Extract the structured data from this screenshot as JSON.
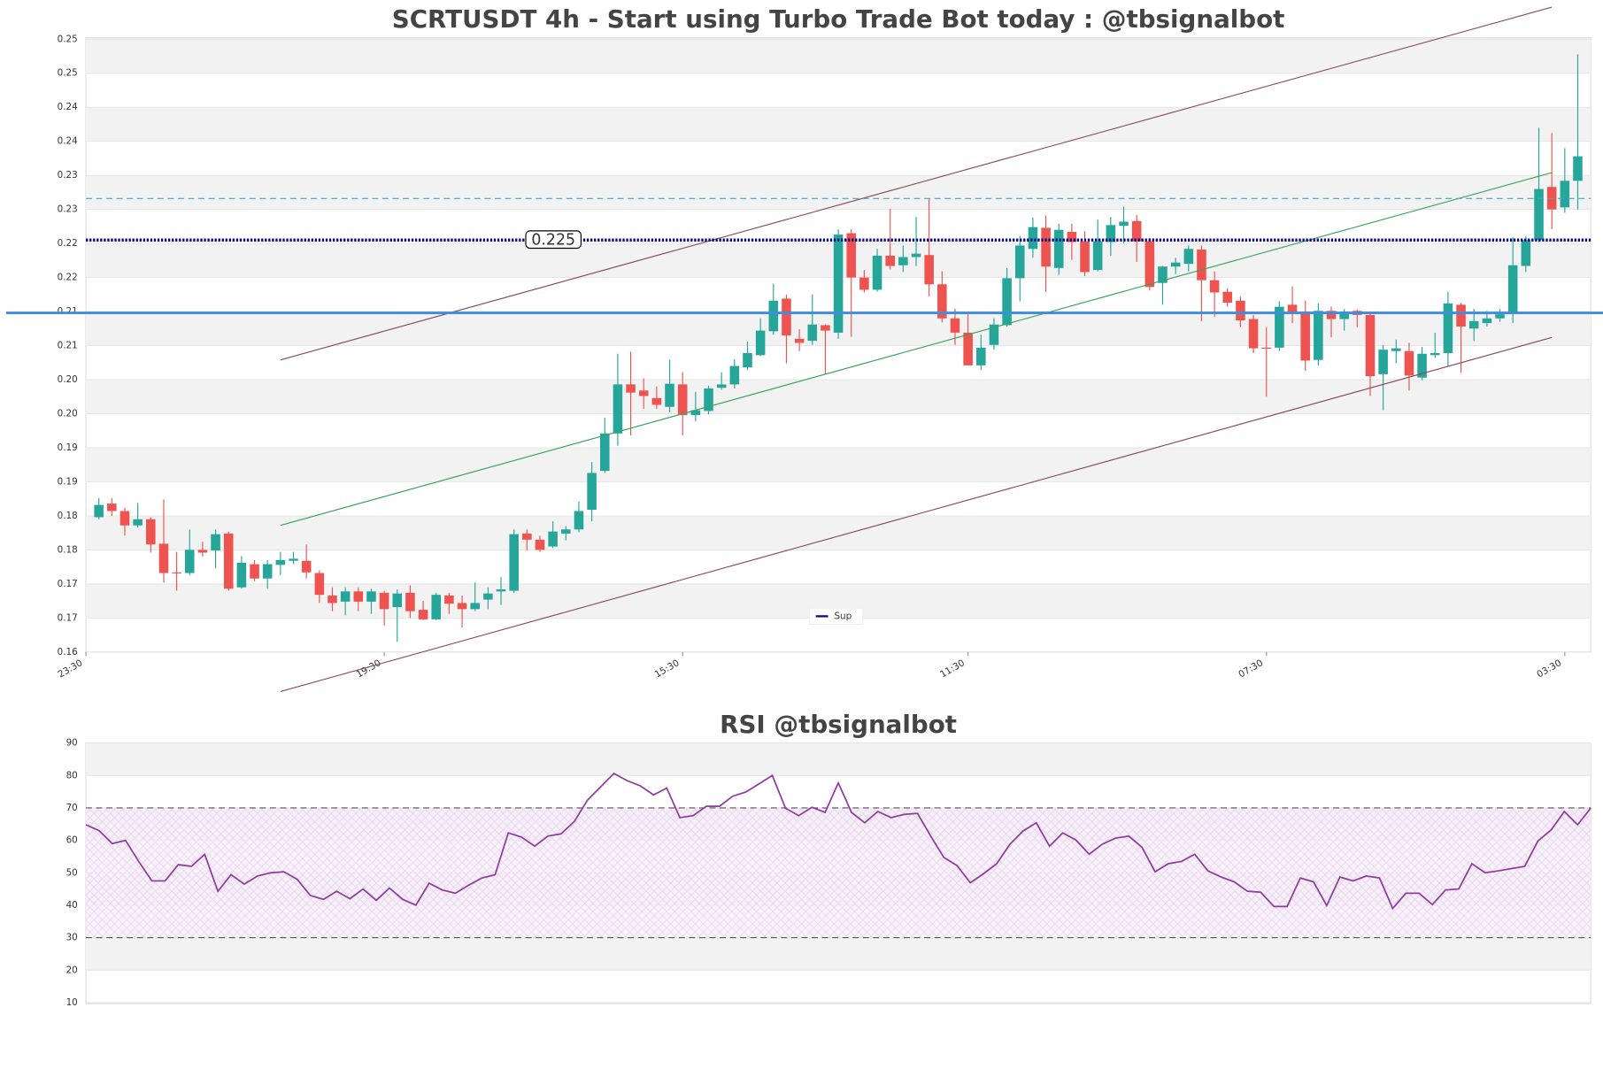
{
  "chart_data": [
    {
      "type": "candlestick",
      "title": "SCRTUSDT 4h - Start using Turbo Trade Bot today : @tbsignalbot",
      "open": [
        0.1843,
        0.1863,
        0.1852,
        0.1831,
        0.184,
        0.1804,
        0.1762,
        0.1761,
        0.1795,
        0.1794,
        0.1819,
        0.174,
        0.1774,
        0.1753,
        0.1773,
        0.1779,
        0.1779,
        0.1761,
        0.1728,
        0.1719,
        0.1734,
        0.1719,
        0.1732,
        0.1711,
        0.1732,
        0.1707,
        0.1693,
        0.1728,
        0.1717,
        0.1708,
        0.1722,
        0.1734,
        0.1735,
        0.1819,
        0.181,
        0.18,
        0.1819,
        0.1825,
        0.1854,
        0.1911,
        0.1966,
        0.2038,
        0.2029,
        0.2018,
        0.2005,
        0.2038,
        0.1993,
        0.1999,
        0.2033,
        0.2038,
        0.2063,
        0.2081,
        0.2116,
        0.2164,
        0.2105,
        0.2102,
        0.2125,
        0.2114,
        0.226,
        0.2195,
        0.2177,
        0.2227,
        0.2213,
        0.2225,
        0.2228,
        0.2185,
        0.2135,
        0.2114,
        0.2066,
        0.2096,
        0.2125,
        0.2194,
        0.2237,
        0.2268,
        0.2209,
        0.2262,
        0.2248,
        0.2206,
        0.2247,
        0.2271,
        0.2278,
        0.2248,
        0.2187,
        0.2211,
        0.2215,
        0.2236,
        0.2191,
        0.2174,
        0.2161,
        0.2134,
        0.2092,
        0.2092,
        0.2155,
        0.2145,
        0.2074,
        0.2146,
        0.2134,
        0.2146,
        0.214,
        0.2053,
        0.2087,
        0.2087,
        0.2048,
        0.2081,
        0.2084,
        0.2155,
        0.212,
        0.2128,
        0.2135,
        0.2143,
        0.2212,
        0.225,
        0.2328,
        0.2298,
        0.2337
      ],
      "high": [
        0.1871,
        0.1871,
        0.1857,
        0.1864,
        0.1843,
        0.1869,
        0.1792,
        0.1825,
        0.1807,
        0.1825,
        0.1822,
        0.1786,
        0.178,
        0.178,
        0.1792,
        0.1792,
        0.1803,
        0.1765,
        0.174,
        0.174,
        0.174,
        0.1738,
        0.1735,
        0.1737,
        0.1743,
        0.172,
        0.1732,
        0.1732,
        0.1728,
        0.1747,
        0.174,
        0.1755,
        0.1825,
        0.1825,
        0.1816,
        0.1837,
        0.183,
        0.1866,
        0.1924,
        0.1989,
        0.2083,
        0.2086,
        0.2047,
        0.2035,
        0.2074,
        0.2056,
        0.2027,
        0.2036,
        0.2056,
        0.2075,
        0.2101,
        0.2135,
        0.2186,
        0.217,
        0.2119,
        0.217,
        0.2126,
        0.2266,
        0.2266,
        0.2206,
        0.2237,
        0.2296,
        0.2242,
        0.2284,
        0.2311,
        0.2204,
        0.2149,
        0.2141,
        0.2111,
        0.2135,
        0.2209,
        0.2256,
        0.2283,
        0.2286,
        0.2274,
        0.2274,
        0.2263,
        0.228,
        0.2284,
        0.2299,
        0.2287,
        0.2253,
        0.2212,
        0.2224,
        0.2242,
        0.2242,
        0.2204,
        0.2179,
        0.2167,
        0.214,
        0.2122,
        0.216,
        0.2182,
        0.2161,
        0.2157,
        0.2152,
        0.2149,
        0.2148,
        0.2145,
        0.2096,
        0.2104,
        0.2099,
        0.2093,
        0.2114,
        0.2174,
        0.2158,
        0.2149,
        0.2146,
        0.2149,
        0.2254,
        0.2256,
        0.2415,
        0.2407,
        0.2385,
        0.2523
      ],
      "low": [
        0.184,
        0.1845,
        0.1816,
        0.1828,
        0.1791,
        0.1747,
        0.1735,
        0.1758,
        0.1785,
        0.1768,
        0.1735,
        0.1738,
        0.1749,
        0.1738,
        0.1758,
        0.1774,
        0.1753,
        0.1717,
        0.1705,
        0.1699,
        0.1705,
        0.1701,
        0.1684,
        0.166,
        0.1695,
        0.1692,
        0.1692,
        0.1701,
        0.1681,
        0.1705,
        0.1708,
        0.1714,
        0.1732,
        0.1794,
        0.1792,
        0.1798,
        0.1809,
        0.1821,
        0.1837,
        0.1908,
        0.1948,
        0.1963,
        0.2002,
        0.2002,
        0.1997,
        0.1963,
        0.1984,
        0.1994,
        0.203,
        0.2032,
        0.2059,
        0.208,
        0.2111,
        0.2069,
        0.2087,
        0.2096,
        0.2053,
        0.2105,
        0.2108,
        0.2173,
        0.2174,
        0.2207,
        0.2203,
        0.2212,
        0.2167,
        0.2129,
        0.2096,
        0.2066,
        0.2059,
        0.2089,
        0.2123,
        0.216,
        0.2224,
        0.2174,
        0.2199,
        0.2221,
        0.2197,
        0.2204,
        0.2227,
        0.2245,
        0.2218,
        0.2176,
        0.2155,
        0.22,
        0.2204,
        0.2131,
        0.2137,
        0.2152,
        0.2122,
        0.2084,
        0.202,
        0.2087,
        0.2128,
        0.2058,
        0.2066,
        0.2107,
        0.2117,
        0.2122,
        0.2021,
        0.2,
        0.2069,
        0.2029,
        0.2044,
        0.2077,
        0.2065,
        0.2055,
        0.2102,
        0.2123,
        0.213,
        0.2128,
        0.2203,
        0.2247,
        0.2266,
        0.229,
        0.2295
      ],
      "close": [
        0.1861,
        0.1852,
        0.1831,
        0.184,
        0.1803,
        0.1761,
        0.1761,
        0.1795,
        0.1791,
        0.1818,
        0.1738,
        0.1776,
        0.1753,
        0.1774,
        0.178,
        0.1782,
        0.1762,
        0.1729,
        0.1717,
        0.1734,
        0.1719,
        0.1734,
        0.1708,
        0.1731,
        0.1705,
        0.1693,
        0.1729,
        0.1716,
        0.1708,
        0.1717,
        0.1731,
        0.1737,
        0.1818,
        0.181,
        0.1795,
        0.1822,
        0.1825,
        0.1852,
        0.1908,
        0.1966,
        0.2038,
        0.2026,
        0.2021,
        0.2008,
        0.2039,
        0.1993,
        0.2,
        0.2032,
        0.2038,
        0.2065,
        0.2084,
        0.2117,
        0.2161,
        0.211,
        0.2099,
        0.2126,
        0.2117,
        0.2258,
        0.2195,
        0.2177,
        0.2227,
        0.2212,
        0.2225,
        0.223,
        0.2185,
        0.2135,
        0.2114,
        0.2066,
        0.2092,
        0.2126,
        0.2194,
        0.2242,
        0.2269,
        0.2211,
        0.2265,
        0.2247,
        0.2203,
        0.2248,
        0.2272,
        0.2277,
        0.2248,
        0.2181,
        0.2211,
        0.2217,
        0.2237,
        0.2191,
        0.2173,
        0.2158,
        0.2132,
        0.2091,
        0.2091,
        0.2152,
        0.2143,
        0.2073,
        0.2146,
        0.2134,
        0.2145,
        0.214,
        0.205,
        0.2089,
        0.2091,
        0.2051,
        0.2083,
        0.2084,
        0.2157,
        0.2123,
        0.2131,
        0.2135,
        0.2141,
        0.2213,
        0.225,
        0.2325,
        0.2295,
        0.2337,
        0.2373
      ],
      "up_color": "#26a69a",
      "down_color": "#ef5350",
      "xlim": [
        -1,
        115
      ],
      "xticks": [
        {
          "value": -1,
          "label": "23:30"
        },
        {
          "value": 22,
          "label": "19:30"
        },
        {
          "value": 45,
          "label": "15:30"
        },
        {
          "value": 67,
          "label": "11:30"
        },
        {
          "value": 90,
          "label": "07:30"
        },
        {
          "value": 113,
          "label": "03:30"
        }
      ],
      "ylim": [
        0.1645,
        0.2547
      ],
      "yticks": [
        {
          "value": 0.1645,
          "label": "0.16"
        },
        {
          "value": 0.1695,
          "label": "0.17"
        },
        {
          "value": 0.1745,
          "label": "0.17"
        },
        {
          "value": 0.1795,
          "label": "0.18"
        },
        {
          "value": 0.1845,
          "label": "0.18"
        },
        {
          "value": 0.1895,
          "label": "0.19"
        },
        {
          "value": 0.1945,
          "label": "0.19"
        },
        {
          "value": 0.1995,
          "label": "0.20"
        },
        {
          "value": 0.2045,
          "label": "0.20"
        },
        {
          "value": 0.2095,
          "label": "0.21"
        },
        {
          "value": 0.2145,
          "label": "0.21"
        },
        {
          "value": 0.2195,
          "label": "0.22"
        },
        {
          "value": 0.2245,
          "label": "0.22"
        },
        {
          "value": 0.2295,
          "label": "0.23"
        },
        {
          "value": 0.2345,
          "label": "0.23"
        },
        {
          "value": 0.2395,
          "label": "0.24"
        },
        {
          "value": 0.2445,
          "label": "0.24"
        },
        {
          "value": 0.2495,
          "label": "0.25"
        },
        {
          "value": 0.2545,
          "label": "0.25"
        }
      ],
      "hlines": [
        {
          "name": "Sup",
          "value": 0.225,
          "color": "#0a0a8c",
          "style": "dotted"
        },
        {
          "value": 0.2311,
          "color": "#4aa3c8",
          "style": "dashed"
        },
        {
          "value": 0.2143,
          "color": "#3d8ee0",
          "style": "solid"
        }
      ],
      "trendlines": [
        {
          "x": [
            14,
            112
          ],
          "y": [
            0.2074,
            0.2592
          ],
          "color": "#8b4a5c"
        },
        {
          "x": [
            14,
            112
          ],
          "y": [
            0.1587,
            0.2107
          ],
          "color": "#8b4a5c"
        },
        {
          "x": [
            14,
            112
          ],
          "y": [
            0.1831,
            0.2349
          ],
          "color": "#3aa35a"
        }
      ],
      "legend": "lower center",
      "grid": true
    },
    {
      "type": "line",
      "title": "RSI @tbsignalbot",
      "series": [
        {
          "color": "#8e3a9e",
          "values": [
            64.8,
            63,
            59,
            60,
            53.5,
            47.5,
            47.5,
            52.5,
            52,
            55.7,
            44.3,
            49.4,
            46.5,
            49,
            50,
            50.3,
            48,
            43,
            41.8,
            44.3,
            42,
            45,
            41.5,
            45.3,
            41.8,
            40,
            46.8,
            44.7,
            43.7,
            46.2,
            48.4,
            49.4,
            62.3,
            61,
            58.2,
            61.3,
            62,
            65.8,
            72.4,
            76.5,
            80.6,
            78.4,
            76.8,
            74,
            76.1,
            67,
            67.6,
            70.5,
            70.5,
            73.6,
            74.9,
            77.4,
            80,
            69.9,
            67.6,
            70.2,
            68.6,
            77.7,
            68.6,
            65.4,
            68.9,
            67,
            68,
            68.3,
            61.3,
            54.7,
            52.2,
            46.9,
            49.7,
            52.8,
            58.8,
            62.9,
            65.4,
            58.2,
            62.3,
            60.1,
            55.7,
            58.8,
            60.7,
            61.3,
            57.9,
            50.3,
            52.8,
            53.5,
            55.7,
            50.6,
            48.7,
            47.2,
            44.3,
            44,
            39.6,
            39.6,
            48.4,
            47.2,
            39.9,
            48.7,
            47.5,
            49,
            48.4,
            39,
            43.7,
            43.7,
            40.2,
            44.7,
            45,
            52.8,
            50,
            50.6,
            51.3,
            52,
            59.8,
            63.2,
            68.9,
            64.8,
            69.9
          ]
        }
      ],
      "ylim": [
        10,
        90
      ],
      "yticks": [
        10,
        20,
        30,
        40,
        50,
        60,
        70,
        80,
        90
      ],
      "levels": [
        70,
        30
      ],
      "grid": true
    }
  ]
}
